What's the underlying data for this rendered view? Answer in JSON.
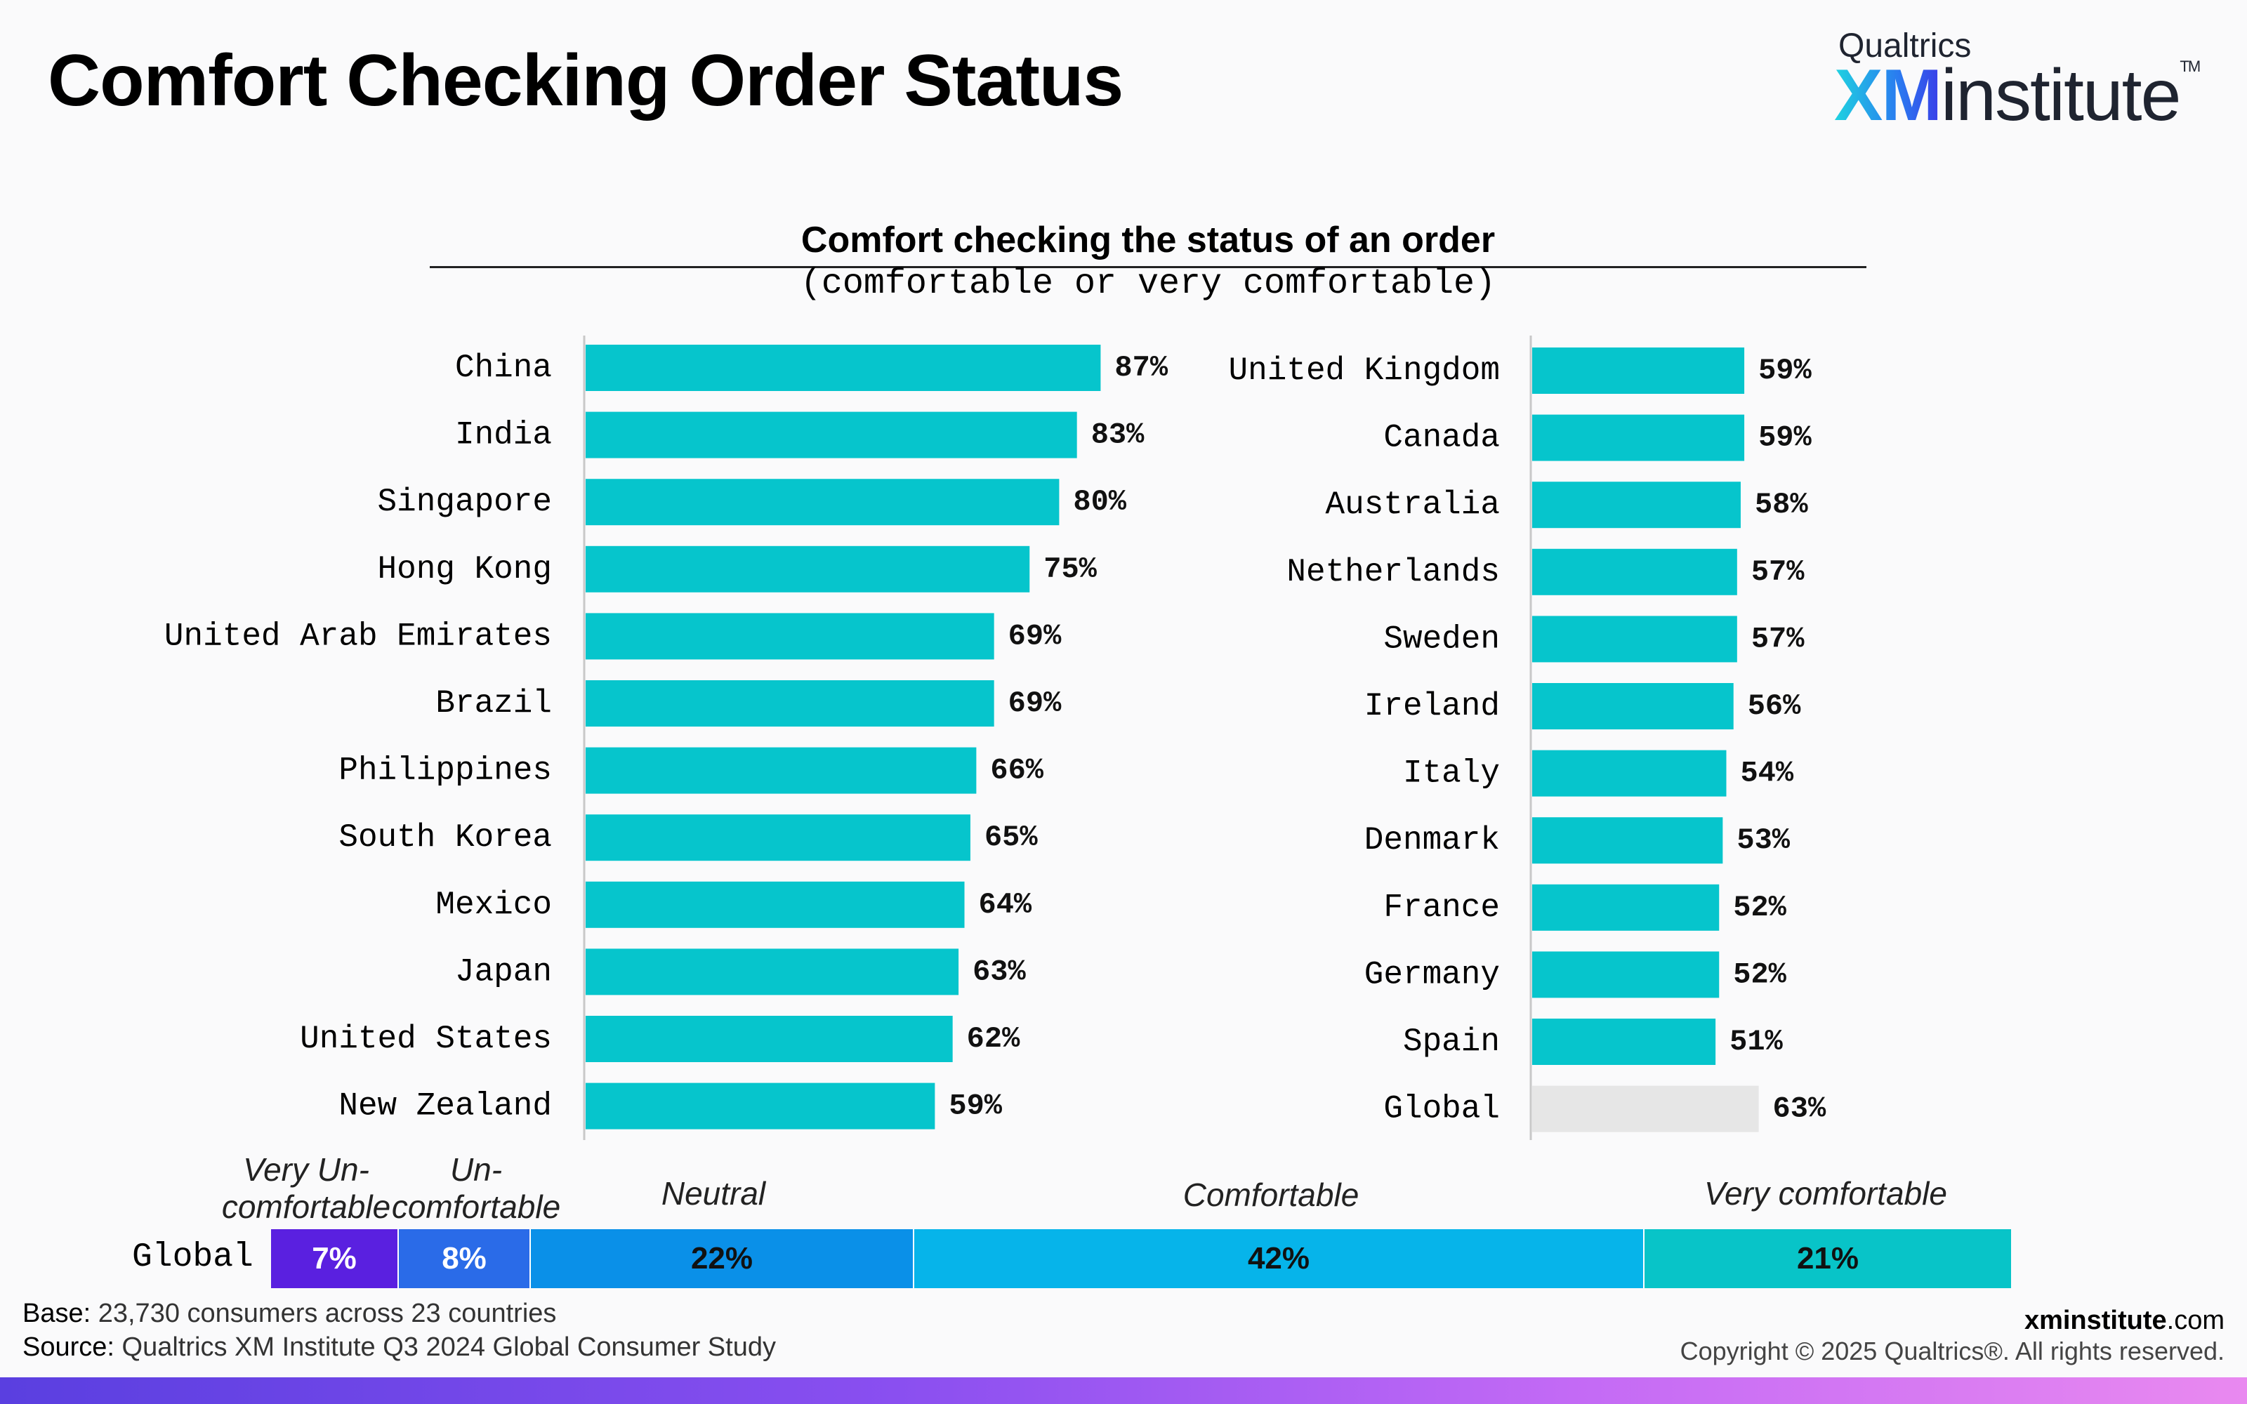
{
  "header": {
    "title": "Comfort Checking Order Status",
    "logo_top": "Qualtrics",
    "logo_xm": "XM",
    "logo_word": "institute",
    "logo_tm": "TM"
  },
  "colors": {
    "bar": "#06c5cc",
    "global_bar": "#e6e6e6",
    "very_uncomfortable": "#5a20e0",
    "uncomfortable": "#2a6be8",
    "neutral": "#0a90e8",
    "comfortable": "#06b4ea",
    "very_comfortable": "#08c4c8"
  },
  "chart_data": [
    {
      "type": "bar",
      "orientation": "horizontal",
      "title": "Comfort checking the status of an order",
      "subtitle": "(comfortable or very comfortable)",
      "categories": [
        "China",
        "India",
        "Singapore",
        "Hong Kong",
        "United Arab Emirates",
        "Brazil",
        "Philippines",
        "South Korea",
        "Mexico",
        "Japan",
        "United States",
        "New Zealand"
      ],
      "values": [
        87,
        83,
        80,
        75,
        69,
        69,
        66,
        65,
        64,
        63,
        62,
        59
      ],
      "value_format": "percent",
      "xlim": [
        0,
        100
      ]
    },
    {
      "type": "bar",
      "orientation": "horizontal",
      "categories": [
        "United Kingdom",
        "Canada",
        "Australia",
        "Netherlands",
        "Sweden",
        "Ireland",
        "Italy",
        "Denmark",
        "France",
        "Germany",
        "Spain",
        "Global"
      ],
      "values": [
        59,
        59,
        58,
        57,
        57,
        56,
        54,
        53,
        52,
        52,
        51,
        63
      ],
      "highlight": "Global",
      "value_format": "percent",
      "xlim": [
        0,
        100
      ]
    },
    {
      "type": "bar",
      "orientation": "horizontal",
      "stacked": true,
      "categories": [
        "Global"
      ],
      "series": [
        {
          "name": "Very Un-comfortable",
          "values": [
            7
          ]
        },
        {
          "name": "Un-comfortable",
          "values": [
            8
          ]
        },
        {
          "name": "Neutral",
          "values": [
            22
          ]
        },
        {
          "name": "Comfortable",
          "values": [
            42
          ]
        },
        {
          "name": "Very comfortable",
          "values": [
            21
          ]
        }
      ]
    }
  ],
  "stacked_bar": {
    "row_label": "Global",
    "labels": {
      "very_uncomfortable": "Very Un-\ncomfortable",
      "uncomfortable": "Un-\ncomfortable",
      "neutral": "Neutral",
      "comfortable": "Comfortable",
      "very_comfortable": "Very comfortable"
    },
    "values_text": {
      "very_uncomfortable": "7%",
      "uncomfortable": "8%",
      "neutral": "22%",
      "comfortable": "42%",
      "very_comfortable": "21%"
    }
  },
  "footer": {
    "base_label": "Base:",
    "base_text": "23,730 consumers across 23 countries",
    "source_label": "Source:",
    "source_text": "Qualtrics XM Institute Q3 2024 Global Consumer Study",
    "site_bold": "xminstitute",
    "site_rest": ".com",
    "copyright": "Copyright © 2025 Qualtrics®. All rights reserved."
  }
}
